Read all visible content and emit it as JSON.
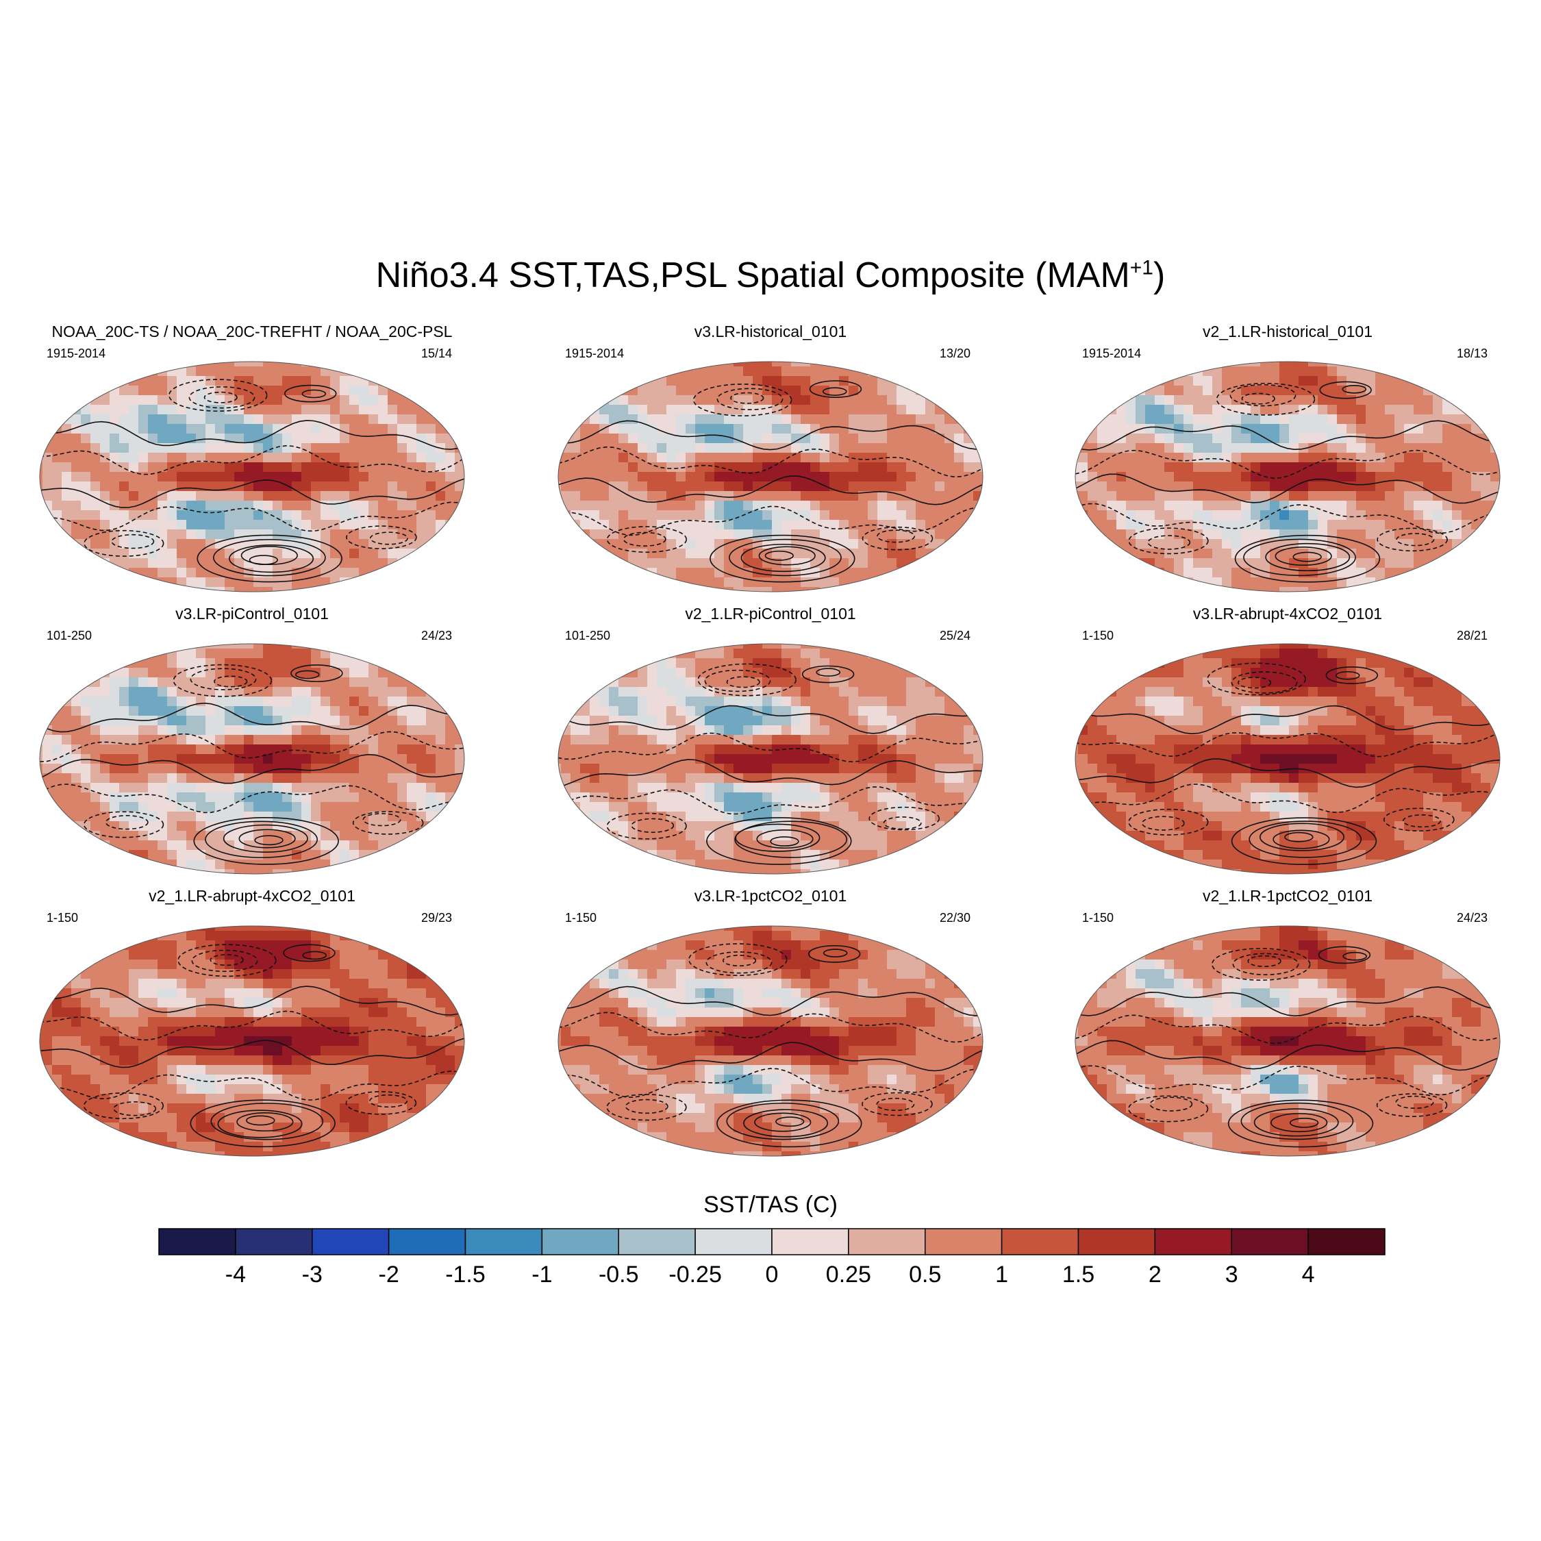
{
  "figure": {
    "title_main": "Niño3.4 SST,TAS,PSL Spatial Composite (MAM",
    "title_sup": "+1",
    "title_end": ")"
  },
  "panels": [
    {
      "title": "NOAA_20C-TS / NOAA_20C-TREFHT / NOAA_20C-PSL",
      "years": "1915-2014",
      "count": "15/14",
      "seed": 1,
      "warmth": 0.0
    },
    {
      "title": "v3.LR-historical_0101",
      "years": "1915-2014",
      "count": "13/20",
      "seed": 2,
      "warmth": 0.15
    },
    {
      "title": "v2_1.LR-historical_0101",
      "years": "1915-2014",
      "count": "18/13",
      "seed": 3,
      "warmth": 0.1
    },
    {
      "title": "v3.LR-piControl_0101",
      "years": "101-250",
      "count": "24/23",
      "seed": 4,
      "warmth": 0.05
    },
    {
      "title": "v2_1.LR-piControl_0101",
      "years": "101-250",
      "count": "25/24",
      "seed": 5,
      "warmth": 0.1
    },
    {
      "title": "v3.LR-abrupt-4xCO2_0101",
      "years": "1-150",
      "count": "28/21",
      "seed": 6,
      "warmth": 0.65
    },
    {
      "title": "v2_1.LR-abrupt-4xCO2_0101",
      "years": "1-150",
      "count": "29/23",
      "seed": 7,
      "warmth": 0.6
    },
    {
      "title": "v3.LR-1pctCO2_0101",
      "years": "1-150",
      "count": "22/30",
      "seed": 8,
      "warmth": 0.3
    },
    {
      "title": "v2_1.LR-1pctCO2_0101",
      "years": "1-150",
      "count": "24/23",
      "seed": 9,
      "warmth": 0.35
    }
  ],
  "colorbar": {
    "title": "SST/TAS (C)",
    "colors": [
      "#1a1a4a",
      "#283074",
      "#2046b8",
      "#1f6cb8",
      "#3a8bbc",
      "#6fa8c0",
      "#a8c0c9",
      "#dadee0",
      "#ecdbd8",
      "#e0aea0",
      "#d8836a",
      "#c6553b",
      "#b03628",
      "#951a26",
      "#6c0f24",
      "#4c0a18"
    ],
    "levels": [
      "-4",
      "-3",
      "-2",
      "-1.5",
      "-1",
      "-0.5",
      "-0.25",
      "0",
      "0.25",
      "0.5",
      "1",
      "1.5",
      "2",
      "3",
      "4"
    ]
  },
  "chart_data": {
    "type": "heatmap",
    "title": "Niño3.4 SST,TAS,PSL Spatial Composite (MAM+1)",
    "variable": "SST/TAS (C)",
    "contour_levels": [
      -4,
      -3,
      -2,
      -1.5,
      -1,
      -0.5,
      -0.25,
      0,
      0.25,
      0.5,
      1,
      1.5,
      2,
      3,
      4
    ],
    "overlay": "PSL contours (solid positive, dashed negative)",
    "panels": [
      {
        "name": "NOAA_20C-TS / NOAA_20C-TREFHT / NOAA_20C-PSL",
        "period": "1915-2014",
        "events": "15/14"
      },
      {
        "name": "v3.LR-historical_0101",
        "period": "1915-2014",
        "events": "13/20"
      },
      {
        "name": "v2_1.LR-historical_0101",
        "period": "1915-2014",
        "events": "18/13"
      },
      {
        "name": "v3.LR-piControl_0101",
        "period": "101-250",
        "events": "24/23"
      },
      {
        "name": "v2_1.LR-piControl_0101",
        "period": "101-250",
        "events": "25/24"
      },
      {
        "name": "v3.LR-abrupt-4xCO2_0101",
        "period": "1-150",
        "events": "28/21"
      },
      {
        "name": "v2_1.LR-abrupt-4xCO2_0101",
        "period": "1-150",
        "events": "29/23"
      },
      {
        "name": "v3.LR-1pctCO2_0101",
        "period": "1-150",
        "events": "22/30"
      },
      {
        "name": "v2_1.LR-1pctCO2_0101",
        "period": "1-150",
        "events": "24/23"
      }
    ]
  }
}
